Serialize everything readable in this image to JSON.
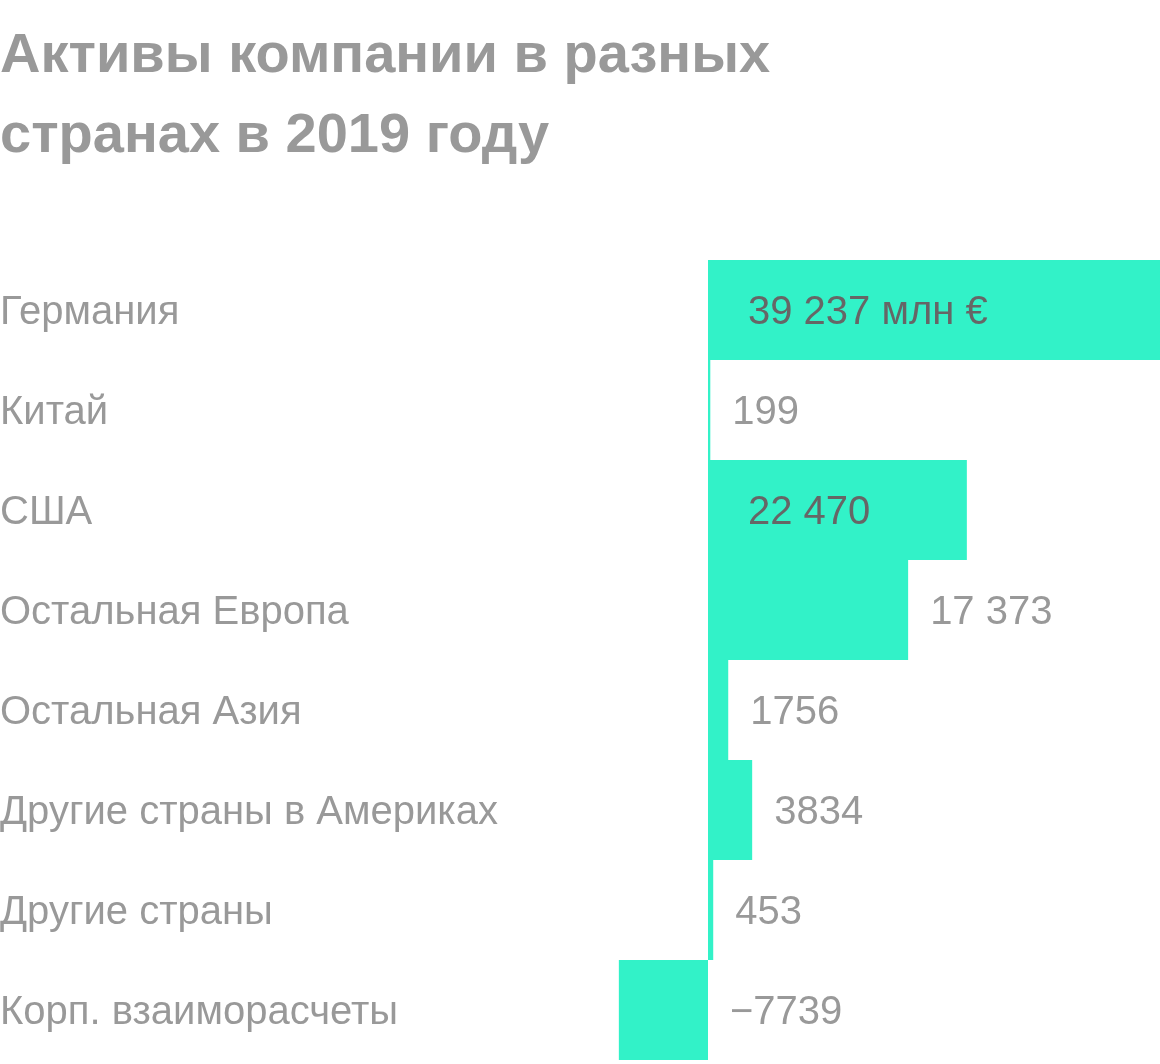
{
  "chart_data": {
    "type": "bar",
    "orientation": "horizontal",
    "title": "Активы компании в разных странах в 2019 году",
    "categories": [
      "Германия",
      "Китай",
      "США",
      "Остальная Европа",
      "Остальная Азия",
      "Другие страны в Америках",
      "Другие страны",
      "Корп. взаиморасчеты"
    ],
    "values": [
      39237,
      199,
      22470,
      17373,
      1756,
      3834,
      453,
      -7739
    ],
    "value_labels": [
      "39 237 млн €",
      "199",
      "22 470",
      "17 373",
      "1756",
      "3834",
      "453",
      "−7739"
    ],
    "color": "#32f2c8"
  }
}
